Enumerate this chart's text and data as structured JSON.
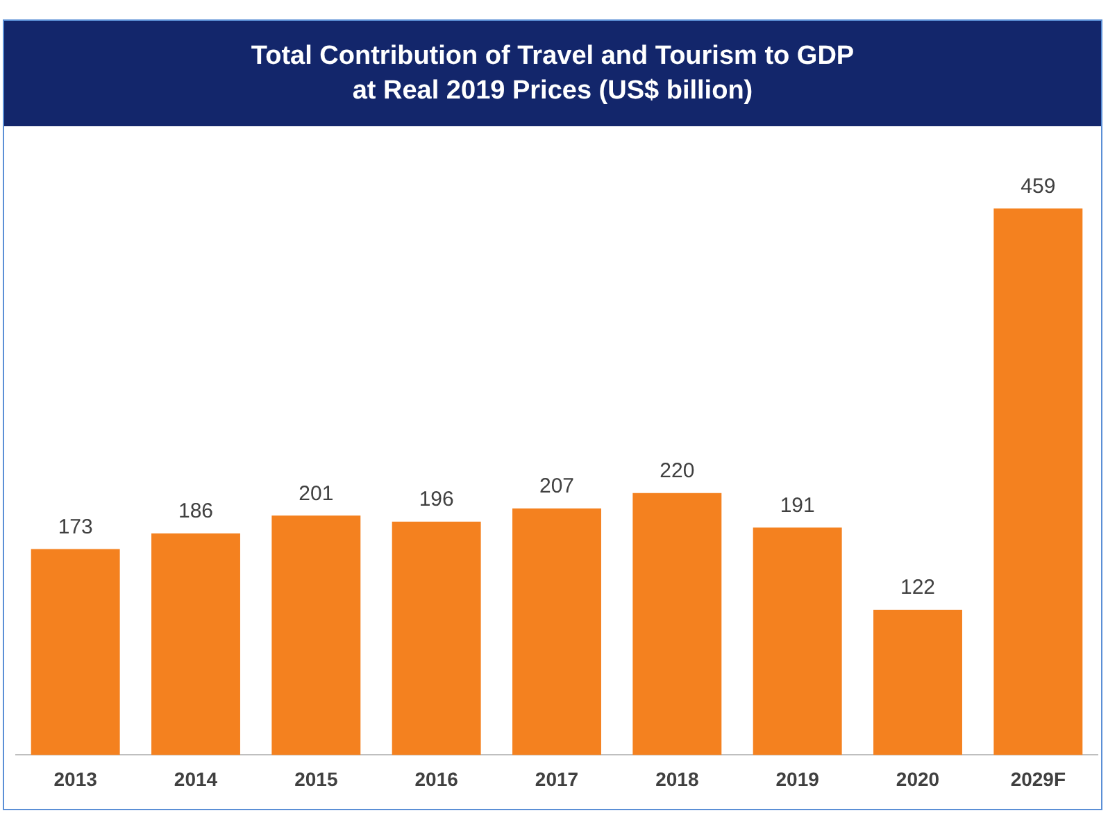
{
  "chart_data": {
    "type": "bar",
    "title": "Total Contribution of Travel and Tourism to GDP\nat Real 2019 Prices (US$ billion)",
    "categories": [
      "2013",
      "2014",
      "2015",
      "2016",
      "2017",
      "2018",
      "2019",
      "2020",
      "2029F"
    ],
    "values": [
      173,
      186,
      201,
      196,
      207,
      220,
      191,
      122,
      459
    ],
    "color": "#f4811f",
    "data_labels": true,
    "grid": false,
    "legend": false
  }
}
